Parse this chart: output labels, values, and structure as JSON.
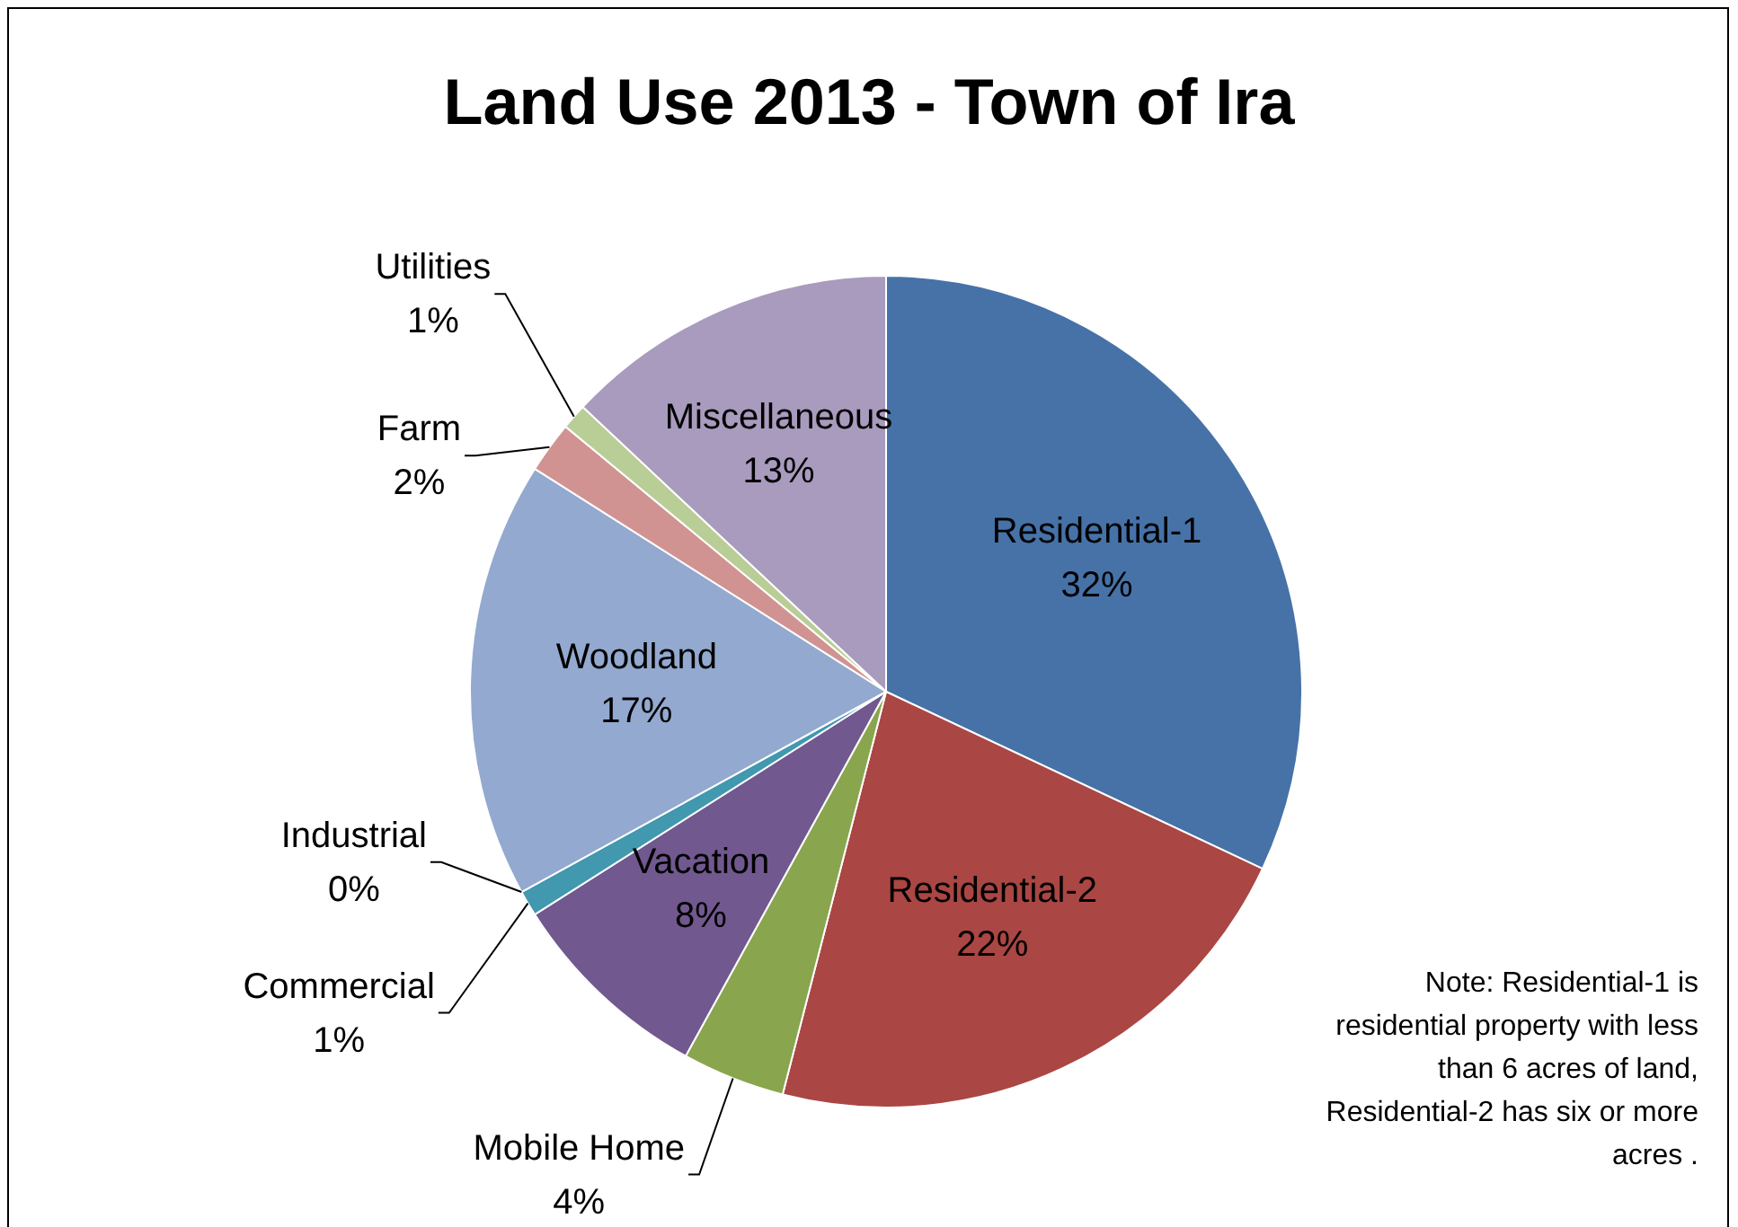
{
  "chart_data": {
    "type": "pie",
    "title": "Land Use 2013 - Town of Ira",
    "categories": [
      "Residential-1",
      "Residential-2",
      "Mobile Home",
      "Vacation",
      "Commercial",
      "Industrial",
      "Woodland",
      "Farm",
      "Utilities",
      "Miscellaneous"
    ],
    "values": [
      32,
      22,
      4,
      8,
      1,
      0,
      17,
      2,
      1,
      13
    ],
    "value_labels": [
      "32%",
      "22%",
      "4%",
      "8%",
      "1%",
      "0%",
      "17%",
      "2%",
      "1%",
      "13%"
    ],
    "colors": [
      "#4672a8",
      "#aa4643",
      "#89a54e",
      "#71588f",
      "#4198af",
      "#db843d",
      "#93a9cf",
      "#d19392",
      "#b9cd96",
      "#a99bbd"
    ],
    "legend": false,
    "annotations": [
      "Note: Residential-1 is residential property with less than 6 acres of land, Residential-2 has six or more acres ."
    ]
  }
}
